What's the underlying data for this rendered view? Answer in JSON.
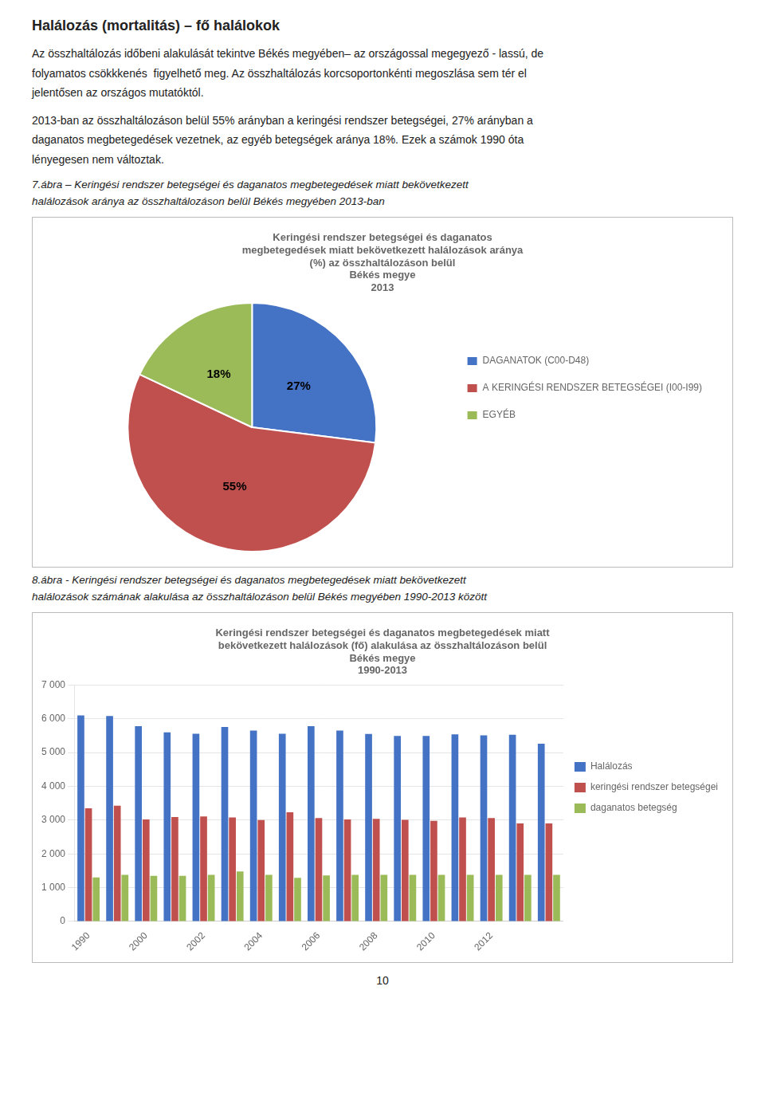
{
  "heading": "Halálozás (mortalitás) – fő halálokok",
  "paragraphs": [
    [
      "Az összhaltálozás időbeni alakulását tekintve Békés megyében– az országossal megegyező - lassú, de",
      "folyamatos csökkkenés  figyelhető meg. Az összhaltálozás korcsoportonkénti megoszlása sem tér el",
      "jelentősen az országos mutatóktól."
    ],
    [
      "2013-ban az összhaltálozáson belül 55% arányban a keringési rendszer betegségei, 27% arányban a",
      "daganatos megbetegedések vezetnek, az egyéb betegségek aránya 18%. Ezek a számok 1990 óta",
      "lényegesen nem változtak."
    ]
  ],
  "page_number": "10",
  "chart_data": [
    {
      "type": "pie",
      "caption": [
        "7.ábra – Keringési rendszer betegségei és daganatos megbetegedések miatt bekövetkezett",
        "halálozások aránya az összhaltálozáson belül Békés megyében 2013-ban"
      ],
      "title": [
        "Keringési rendszer betegségei és daganatos",
        "megbetegedések miatt bekövetkezett halálozások aránya",
        "(%) az összhaltálozáson belül",
        "Békés megye",
        "2013"
      ],
      "categories": [
        "DAGANATOK (C00-D48)",
        "A KERINGÉSI RENDSZER BETEGSÉGEI (I00-I99)",
        "EGYÉB"
      ],
      "values": [
        27,
        55,
        18
      ],
      "value_labels": [
        "27%",
        "55%",
        "18%"
      ],
      "colors": [
        "#4472c4",
        "#c0504d",
        "#9bbb59"
      ],
      "data_labels": true,
      "legend": "right"
    },
    {
      "type": "bar",
      "caption": [
        "8.ábra - Keringési rendszer betegségei és daganatos megbetegedések miatt bekövetkezett",
        "halálozások számának alakulása az összhaltálozáson belül Békés megyében 1990-2013 között"
      ],
      "title": [
        "Keringési rendszer betegségei és daganatos megbetegedések miatt",
        "bekövetkezett halálozások (fő) alakulása az összhaltálozáson belül",
        "Békés megye",
        "1990-2013"
      ],
      "categories": [
        "1990",
        null,
        "2000",
        null,
        "2002",
        null,
        "2004",
        null,
        "2006",
        null,
        "2008",
        null,
        "2010",
        null,
        "2012",
        null,
        null
      ],
      "series": [
        {
          "name": "Halálozás",
          "color": "#4472c4",
          "values": [
            6100,
            6080,
            5780,
            5600,
            5560,
            5760,
            5650,
            5560,
            5780,
            5650,
            5550,
            5490,
            5490,
            5540,
            5510,
            5530,
            5260
          ]
        },
        {
          "name": "keringési rendszer betegségei",
          "color": "#c0504d",
          "values": [
            3350,
            3430,
            3020,
            3090,
            3110,
            3080,
            3000,
            3230,
            3060,
            3020,
            3040,
            3010,
            2980,
            3080,
            3060,
            2900,
            2900
          ]
        },
        {
          "name": "daganatos betegség",
          "color": "#9bbb59",
          "values": [
            1300,
            1380,
            1350,
            1350,
            1380,
            1480,
            1380,
            1290,
            1360,
            1380,
            1380,
            1380,
            1380,
            1380,
            1380,
            1380,
            1380
          ]
        }
      ],
      "ylim": [
        0,
        7000
      ],
      "yticks": [
        0,
        {
          "value": 1000,
          "label": "1 000"
        },
        {
          "value": 2000,
          "label": "2 000"
        },
        {
          "value": 3000,
          "label": "3 000"
        },
        {
          "value": 4000,
          "label": "4 000"
        },
        {
          "value": 5000,
          "label": "5 000"
        },
        {
          "value": 6000,
          "label": "6 000"
        },
        {
          "value": 7000,
          "label": "7 000"
        }
      ],
      "grid": true,
      "legend": "right"
    }
  ]
}
